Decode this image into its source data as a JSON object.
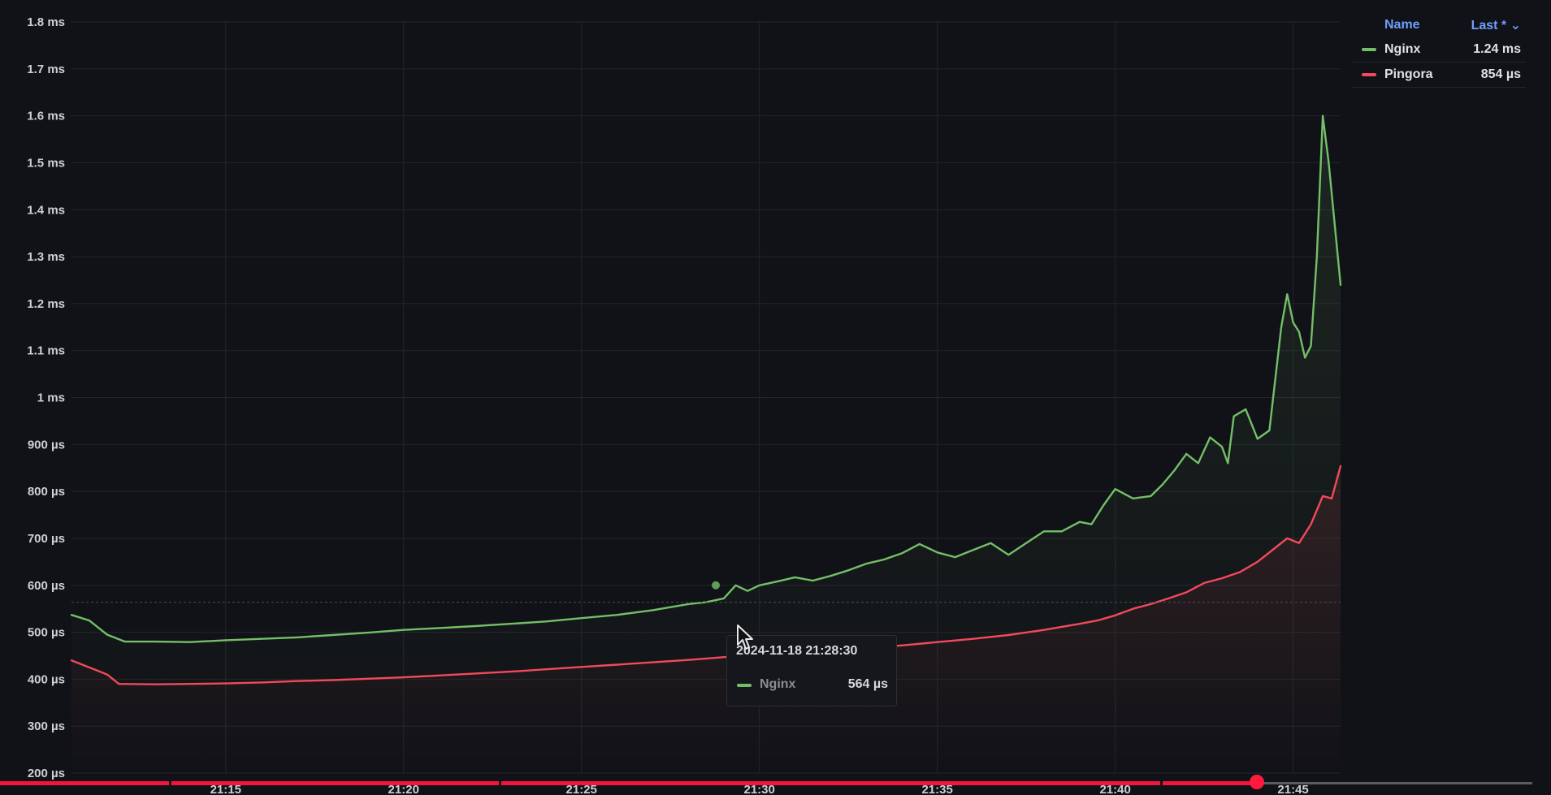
{
  "chart_data": {
    "type": "line",
    "y_unit": "ms",
    "ylim": [
      0.2,
      1.8
    ],
    "y_ticks": [
      {
        "v": 1.8,
        "label": "1.8 ms"
      },
      {
        "v": 1.7,
        "label": "1.7 ms"
      },
      {
        "v": 1.6,
        "label": "1.6 ms"
      },
      {
        "v": 1.5,
        "label": "1.5 ms"
      },
      {
        "v": 1.4,
        "label": "1.4 ms"
      },
      {
        "v": 1.3,
        "label": "1.3 ms"
      },
      {
        "v": 1.2,
        "label": "1.2 ms"
      },
      {
        "v": 1.1,
        "label": "1.1 ms"
      },
      {
        "v": 1.0,
        "label": "1 ms"
      },
      {
        "v": 0.9,
        "label": "900 µs"
      },
      {
        "v": 0.8,
        "label": "800 µs"
      },
      {
        "v": 0.7,
        "label": "700 µs"
      },
      {
        "v": 0.6,
        "label": "600 µs"
      },
      {
        "v": 0.5,
        "label": "500 µs"
      },
      {
        "v": 0.4,
        "label": "400 µs"
      },
      {
        "v": 0.3,
        "label": "300 µs"
      },
      {
        "v": 0.2,
        "label": "200 µs"
      }
    ],
    "x_unit": "minutes",
    "xlim": [
      "21:10:40",
      "21:46:20"
    ],
    "x_ticks": [
      {
        "t": "21:15",
        "label": "21:15"
      },
      {
        "t": "21:20",
        "label": "21:20"
      },
      {
        "t": "21:25",
        "label": "21:25"
      },
      {
        "t": "21:30",
        "label": "21:30"
      },
      {
        "t": "21:35",
        "label": "21:35"
      },
      {
        "t": "21:40",
        "label": "21:40"
      },
      {
        "t": "21:45",
        "label": "21:45"
      }
    ],
    "grid": true,
    "legend_position": "top-right",
    "series": [
      {
        "name": "Nginx",
        "color": "#73bf69",
        "fill": true,
        "points": [
          [
            "21:10:40",
            0.537
          ],
          [
            "21:11:10",
            0.525
          ],
          [
            "21:11:40",
            0.495
          ],
          [
            "21:12:10",
            0.48
          ],
          [
            "21:13:00",
            0.48
          ],
          [
            "21:14:00",
            0.479
          ],
          [
            "21:15:00",
            0.483
          ],
          [
            "21:16:00",
            0.486
          ],
          [
            "21:17:00",
            0.489
          ],
          [
            "21:18:00",
            0.494
          ],
          [
            "21:19:00",
            0.499
          ],
          [
            "21:20:00",
            0.505
          ],
          [
            "21:21:00",
            0.509
          ],
          [
            "21:22:00",
            0.513
          ],
          [
            "21:23:00",
            0.518
          ],
          [
            "21:24:00",
            0.523
          ],
          [
            "21:25:00",
            0.53
          ],
          [
            "21:26:00",
            0.537
          ],
          [
            "21:27:00",
            0.547
          ],
          [
            "21:28:00",
            0.56
          ],
          [
            "21:28:30",
            0.564
          ],
          [
            "21:29:00",
            0.572
          ],
          [
            "21:29:20",
            0.6
          ],
          [
            "21:29:40",
            0.588
          ],
          [
            "21:30:00",
            0.6
          ],
          [
            "21:30:30",
            0.608
          ],
          [
            "21:31:00",
            0.617
          ],
          [
            "21:31:30",
            0.61
          ],
          [
            "21:32:00",
            0.62
          ],
          [
            "21:32:30",
            0.632
          ],
          [
            "21:33:00",
            0.646
          ],
          [
            "21:33:30",
            0.655
          ],
          [
            "21:34:00",
            0.668
          ],
          [
            "21:34:30",
            0.688
          ],
          [
            "21:35:00",
            0.67
          ],
          [
            "21:35:30",
            0.66
          ],
          [
            "21:36:00",
            0.675
          ],
          [
            "21:36:30",
            0.69
          ],
          [
            "21:37:00",
            0.665
          ],
          [
            "21:37:30",
            0.69
          ],
          [
            "21:38:00",
            0.715
          ],
          [
            "21:38:30",
            0.715
          ],
          [
            "21:39:00",
            0.735
          ],
          [
            "21:39:20",
            0.73
          ],
          [
            "21:39:40",
            0.77
          ],
          [
            "21:40:00",
            0.805
          ],
          [
            "21:40:30",
            0.785
          ],
          [
            "21:41:00",
            0.79
          ],
          [
            "21:41:20",
            0.815
          ],
          [
            "21:41:40",
            0.845
          ],
          [
            "21:42:00",
            0.88
          ],
          [
            "21:42:20",
            0.86
          ],
          [
            "21:42:40",
            0.915
          ],
          [
            "21:43:00",
            0.895
          ],
          [
            "21:43:10",
            0.86
          ],
          [
            "21:43:20",
            0.96
          ],
          [
            "21:43:40",
            0.975
          ],
          [
            "21:44:00",
            0.912
          ],
          [
            "21:44:20",
            0.93
          ],
          [
            "21:44:40",
            1.15
          ],
          [
            "21:44:50",
            1.22
          ],
          [
            "21:45:00",
            1.16
          ],
          [
            "21:45:10",
            1.14
          ],
          [
            "21:45:20",
            1.085
          ],
          [
            "21:45:30",
            1.11
          ],
          [
            "21:45:40",
            1.3
          ],
          [
            "21:45:50",
            1.6
          ],
          [
            "21:46:00",
            1.5
          ],
          [
            "21:46:20",
            1.24
          ]
        ]
      },
      {
        "name": "Pingora",
        "color": "#f2495c",
        "fill": true,
        "points": [
          [
            "21:10:40",
            0.44
          ],
          [
            "21:11:10",
            0.425
          ],
          [
            "21:11:40",
            0.41
          ],
          [
            "21:12:00",
            0.39
          ],
          [
            "21:13:00",
            0.389
          ],
          [
            "21:14:00",
            0.39
          ],
          [
            "21:15:00",
            0.391
          ],
          [
            "21:16:00",
            0.393
          ],
          [
            "21:17:00",
            0.396
          ],
          [
            "21:18:00",
            0.398
          ],
          [
            "21:19:00",
            0.401
          ],
          [
            "21:20:00",
            0.404
          ],
          [
            "21:21:00",
            0.408
          ],
          [
            "21:22:00",
            0.412
          ],
          [
            "21:23:00",
            0.416
          ],
          [
            "21:24:00",
            0.421
          ],
          [
            "21:25:00",
            0.426
          ],
          [
            "21:26:00",
            0.431
          ],
          [
            "21:27:00",
            0.436
          ],
          [
            "21:28:00",
            0.441
          ],
          [
            "21:29:00",
            0.447
          ],
          [
            "21:30:00",
            0.452
          ],
          [
            "21:31:00",
            0.456
          ],
          [
            "21:32:00",
            0.46
          ],
          [
            "21:33:00",
            0.466
          ],
          [
            "21:34:00",
            0.472
          ],
          [
            "21:35:00",
            0.479
          ],
          [
            "21:36:00",
            0.486
          ],
          [
            "21:37:00",
            0.494
          ],
          [
            "21:38:00",
            0.505
          ],
          [
            "21:39:00",
            0.518
          ],
          [
            "21:39:30",
            0.525
          ],
          [
            "21:40:00",
            0.536
          ],
          [
            "21:40:30",
            0.55
          ],
          [
            "21:41:00",
            0.56
          ],
          [
            "21:41:30",
            0.572
          ],
          [
            "21:42:00",
            0.585
          ],
          [
            "21:42:30",
            0.605
          ],
          [
            "21:43:00",
            0.615
          ],
          [
            "21:43:30",
            0.628
          ],
          [
            "21:44:00",
            0.65
          ],
          [
            "21:44:30",
            0.68
          ],
          [
            "21:44:50",
            0.7
          ],
          [
            "21:45:10",
            0.69
          ],
          [
            "21:45:30",
            0.73
          ],
          [
            "21:45:50",
            0.79
          ],
          [
            "21:46:05",
            0.785
          ],
          [
            "21:46:20",
            0.854
          ]
        ]
      }
    ]
  },
  "legend": {
    "name_header": "Name",
    "last_header": "Last * ⌄",
    "rows": [
      {
        "name": "Nginx",
        "value": "1.24 ms",
        "color": "#73bf69"
      },
      {
        "name": "Pingora",
        "value": "854 µs",
        "color": "#f2495c"
      }
    ]
  },
  "tooltip": {
    "time": "2024-11-18 21:28:30",
    "series_name": "Nginx",
    "value": "564 µs",
    "color": "#73bf69",
    "at": "21:28:30"
  },
  "video_progress": {
    "played_fraction": 0.82
  }
}
